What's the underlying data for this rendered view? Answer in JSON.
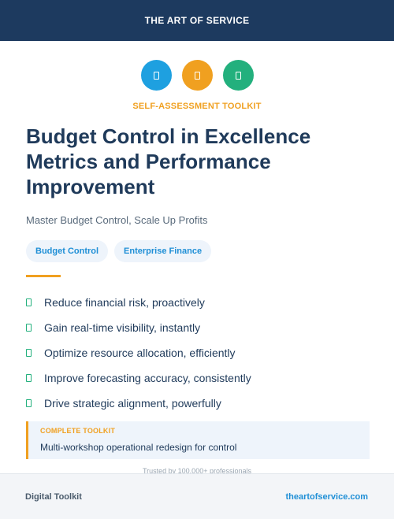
{
  "header": {
    "brand": "THE ART OF SERVICE"
  },
  "icons": [
    {
      "name": "document-icon",
      "color": "#1ea0e0"
    },
    {
      "name": "document-icon",
      "color": "#f0a020"
    },
    {
      "name": "document-icon",
      "color": "#23b07d"
    }
  ],
  "eyebrow": {
    "text": "SELF-ASSESSMENT TOOLKIT",
    "color": "#f0a020"
  },
  "title": "Budget Control in Excellence Metrics and Performance Improvement",
  "subtitle": "Master Budget Control, Scale Up Profits",
  "tags": [
    "Budget Control",
    "Enterprise Finance"
  ],
  "features": [
    "Reduce financial risk, proactively",
    "Gain real-time visibility, instantly",
    "Optimize resource allocation, efficiently",
    "Improve forecasting accuracy, consistently",
    "Drive strategic alignment, powerfully"
  ],
  "toolkit": {
    "label": "COMPLETE TOOLKIT",
    "description": "Multi-workshop operational redesign for control"
  },
  "trusted": "Trusted by 100,000+ professionals",
  "footer": {
    "left": "Digital Toolkit",
    "right": "theartofservice.com"
  },
  "colors": {
    "navy": "#1d3a5f",
    "accent_orange": "#f0a020",
    "accent_blue": "#1ea0e0",
    "accent_green": "#23b07d"
  }
}
